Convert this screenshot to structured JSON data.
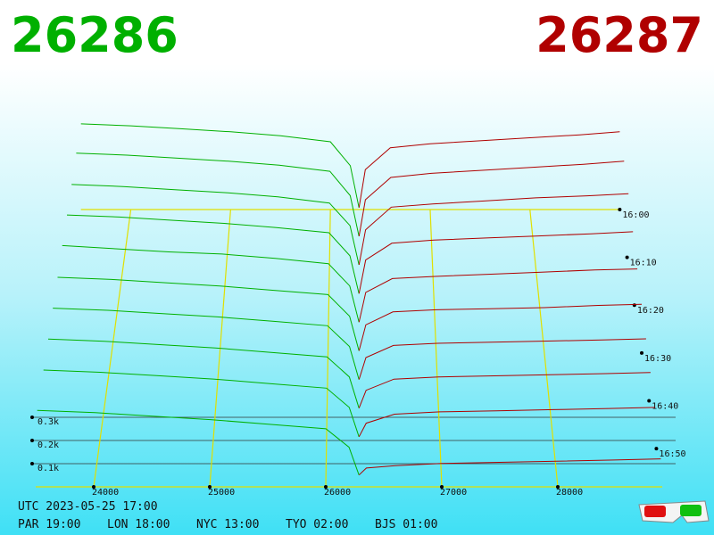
{
  "header": {
    "bid": "26286",
    "ask": "26287"
  },
  "chart_data": {
    "type": "depth3d",
    "bid_color": "#00b000",
    "ask_color": "#b00000",
    "grid_color": "#e0e000",
    "xlim": [
      23500,
      28900
    ],
    "xticks": [
      24000,
      25000,
      26000,
      27000,
      28000
    ],
    "zlim": [
      0,
      400
    ],
    "zticks": [
      {
        "value": 100,
        "label": "0.1k"
      },
      {
        "value": 200,
        "label": "0.2k"
      },
      {
        "value": 300,
        "label": "0.3k"
      }
    ],
    "tlim": [
      0,
      58
    ],
    "tticks": [
      {
        "value": 0,
        "label": "16:00"
      },
      {
        "value": 10,
        "label": "16:10"
      },
      {
        "value": 20,
        "label": "16:20"
      },
      {
        "value": 30,
        "label": "16:30"
      },
      {
        "value": 40,
        "label": "16:40"
      },
      {
        "value": 50,
        "label": "16:50"
      }
    ],
    "bid_prices": [
      23500,
      24000,
      24500,
      25000,
      25500,
      26000,
      26200,
      26286
    ],
    "ask_prices": [
      26287,
      26350,
      26600,
      27000,
      27500,
      28000,
      28500,
      28900
    ],
    "snapshots": [
      {
        "t": 0,
        "bids": [
          430,
          420,
          405,
          390,
          370,
          340,
          220,
          10
        ],
        "asks": [
          10,
          200,
          310,
          330,
          345,
          360,
          375,
          390
        ]
      },
      {
        "t": 6,
        "bids": [
          420,
          410,
          395,
          380,
          360,
          330,
          210,
          10
        ],
        "asks": [
          10,
          190,
          300,
          320,
          335,
          350,
          365,
          380
        ]
      },
      {
        "t": 12,
        "bids": [
          400,
          390,
          375,
          360,
          340,
          310,
          200,
          10
        ],
        "asks": [
          10,
          180,
          290,
          305,
          320,
          335,
          345,
          355
        ]
      },
      {
        "t": 18,
        "bids": [
          385,
          375,
          360,
          345,
          325,
          300,
          190,
          10
        ],
        "asks": [
          10,
          170,
          250,
          265,
          275,
          285,
          295,
          305
        ]
      },
      {
        "t": 24,
        "bids": [
          370,
          355,
          340,
          330,
          310,
          285,
          180,
          10
        ],
        "asks": [
          10,
          150,
          215,
          225,
          235,
          245,
          255,
          260
        ]
      },
      {
        "t": 30,
        "bids": [
          350,
          340,
          325,
          310,
          290,
          270,
          170,
          10
        ],
        "asks": [
          10,
          130,
          190,
          200,
          205,
          210,
          220,
          225
        ]
      },
      {
        "t": 36,
        "bids": [
          335,
          325,
          310,
          295,
          275,
          255,
          160,
          10
        ],
        "asks": [
          10,
          110,
          165,
          175,
          180,
          185,
          190,
          195
        ]
      },
      {
        "t": 42,
        "bids": [
          320,
          310,
          295,
          280,
          260,
          240,
          150,
          10
        ],
        "asks": [
          10,
          90,
          140,
          150,
          155,
          160,
          165,
          170
        ]
      },
      {
        "t": 48,
        "bids": [
          305,
          295,
          280,
          265,
          245,
          225,
          140,
          10
        ],
        "asks": [
          10,
          70,
          110,
          120,
          125,
          130,
          135,
          140
        ]
      },
      {
        "t": 56,
        "bids": [
          290,
          280,
          265,
          250,
          230,
          210,
          130,
          10
        ],
        "asks": [
          10,
          40,
          50,
          60,
          65,
          70,
          75,
          80
        ]
      }
    ]
  },
  "footer": {
    "utc": "UTC 2023-05-25 17:00",
    "clocks": [
      "PAR 19:00",
      "LON 18:00",
      "NYC 13:00",
      "TYO 02:00",
      "BJS 01:00"
    ]
  }
}
